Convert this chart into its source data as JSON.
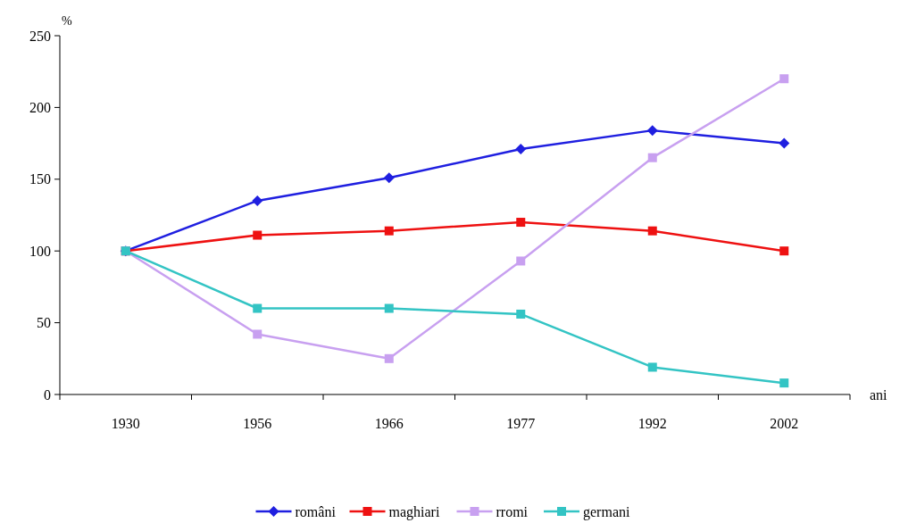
{
  "chart_data": {
    "type": "line",
    "ylabel": "%",
    "xlabel": "ani",
    "categories": [
      "1930",
      "1956",
      "1966",
      "1977",
      "1992",
      "2002"
    ],
    "ylim": [
      0,
      250
    ],
    "yticks": [
      0,
      50,
      100,
      150,
      200,
      250
    ],
    "grid": false,
    "legend": "bottom",
    "series": [
      {
        "name": "români",
        "color": "#1f1fe0",
        "marker": "diamond",
        "values": [
          100,
          135,
          151,
          171,
          184,
          175
        ]
      },
      {
        "name": "maghiari",
        "color": "#ee1111",
        "marker": "square",
        "values": [
          100,
          111,
          114,
          120,
          114,
          100
        ]
      },
      {
        "name": "rromi",
        "color": "#c8a0f0",
        "marker": "square",
        "values": [
          100,
          42,
          25,
          93,
          165,
          220
        ]
      },
      {
        "name": "germani",
        "color": "#33c4c4",
        "marker": "square",
        "values": [
          100,
          60,
          60,
          56,
          19,
          8
        ]
      }
    ]
  }
}
